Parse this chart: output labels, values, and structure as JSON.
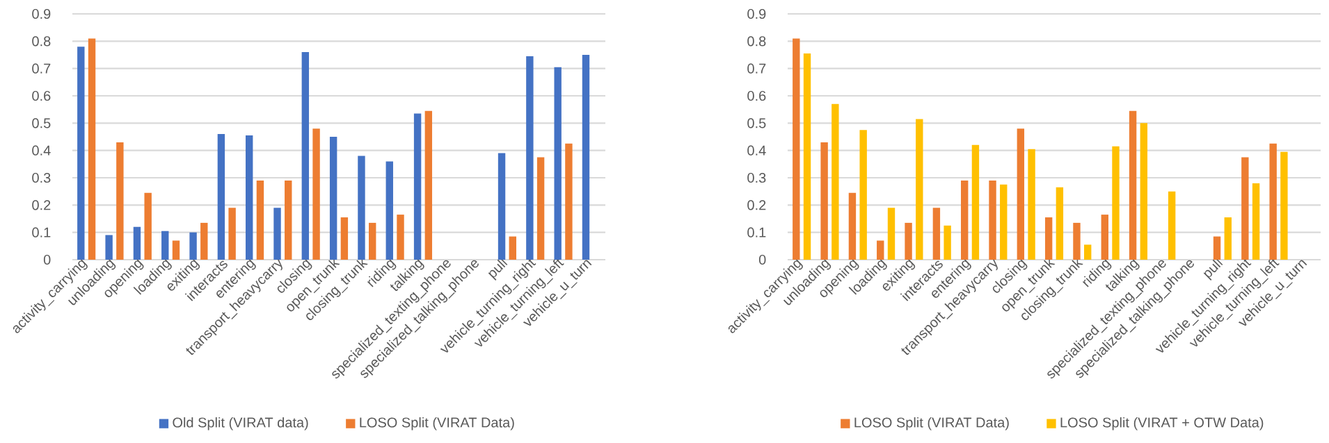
{
  "chart_data": [
    {
      "type": "bar",
      "categories": [
        "activity_carrying",
        "unloading",
        "opening",
        "loading",
        "exiting",
        "interacts",
        "entering",
        "transport_heavycarry",
        "closing",
        "open_trunk",
        "closing_trunk",
        "riding",
        "talking",
        "specialized_texting_phone",
        "specialized_talking_phone",
        "pull",
        "vehicle_turning_right",
        "vehicle_turning_left",
        "vehicle_u_turn"
      ],
      "series": [
        {
          "name": "Old Split (VIRAT data)",
          "color": "#4472c4",
          "values": [
            0.78,
            0.09,
            0.12,
            0.105,
            0.1,
            0.46,
            0.455,
            0.19,
            0.76,
            0.45,
            0.38,
            0.36,
            0.535,
            null,
            null,
            0.39,
            0.745,
            0.705,
            0.75
          ]
        },
        {
          "name": "LOSO Split (VIRAT Data)",
          "color": "#ed7d31",
          "values": [
            0.81,
            0.43,
            0.245,
            0.07,
            0.135,
            0.19,
            0.29,
            0.29,
            0.48,
            0.155,
            0.135,
            0.165,
            0.545,
            null,
            null,
            0.085,
            0.375,
            0.425,
            null
          ]
        }
      ],
      "ylim": [
        0,
        0.9
      ],
      "yticks": [
        0,
        0.1,
        0.2,
        0.3,
        0.4,
        0.5,
        0.6,
        0.7,
        0.8,
        0.9
      ],
      "grid": "y",
      "legend": "bottom"
    },
    {
      "type": "bar",
      "categories": [
        "activity_carrying",
        "unloading",
        "opening",
        "loading",
        "exiting",
        "interacts",
        "entering",
        "transport_heavycarry",
        "closing",
        "open_trunk",
        "closing_trunk",
        "riding",
        "talking",
        "specialized_texting_phone",
        "specialized_talking_phone",
        "pull",
        "vehicle_turning_right",
        "vehicle_turning_left",
        "vehicle_u_turn"
      ],
      "series": [
        {
          "name": "LOSO Split (VIRAT Data)",
          "color": "#ed7d31",
          "values": [
            0.81,
            0.43,
            0.245,
            0.07,
            0.135,
            0.19,
            0.29,
            0.29,
            0.48,
            0.155,
            0.135,
            0.165,
            0.545,
            null,
            null,
            0.085,
            0.375,
            0.425,
            null
          ]
        },
        {
          "name": "LOSO Split (VIRAT + OTW Data)",
          "color": "#ffc000",
          "values": [
            0.755,
            0.57,
            0.475,
            0.19,
            0.515,
            0.125,
            0.42,
            0.275,
            0.405,
            0.265,
            0.055,
            0.415,
            0.5,
            0.25,
            null,
            0.155,
            0.28,
            0.395,
            null
          ]
        }
      ],
      "ylim": [
        0,
        0.9
      ],
      "yticks": [
        0,
        0.1,
        0.2,
        0.3,
        0.4,
        0.5,
        0.6,
        0.7,
        0.8,
        0.9
      ],
      "grid": "y",
      "legend": "bottom"
    }
  ]
}
